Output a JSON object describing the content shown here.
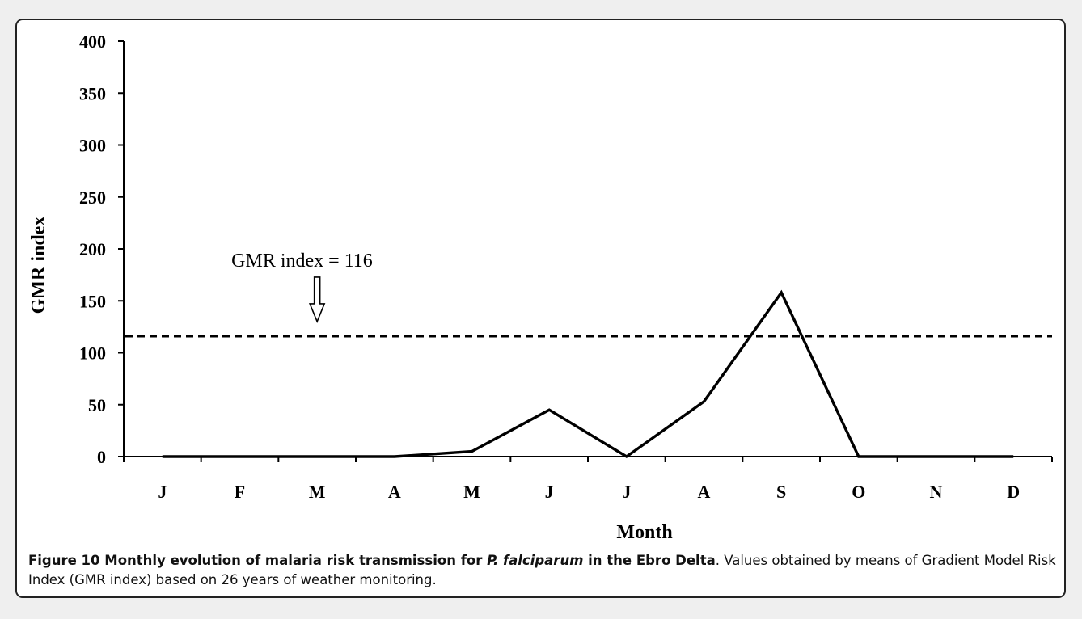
{
  "chart_data": {
    "type": "line",
    "categories": [
      "J",
      "F",
      "M",
      "A",
      "M",
      "J",
      "J",
      "A",
      "S",
      "O",
      "N",
      "D"
    ],
    "series": [
      {
        "values": [
          0,
          0,
          0,
          0,
          5,
          45,
          0,
          53,
          158,
          0,
          0,
          0
        ]
      }
    ],
    "xlabel": "Month",
    "ylabel": "GMR index",
    "ylim": [
      0,
      400
    ],
    "yticks": [
      0,
      50,
      100,
      150,
      200,
      250,
      300,
      350,
      400
    ],
    "threshold": {
      "value": 116,
      "label": "GMR index = 116",
      "style": "dashed"
    },
    "grid": false,
    "legend": "none"
  },
  "caption": {
    "figure_label": "Figure 10",
    "title_pre": "Monthly evolution of malaria risk transmission for ",
    "title_species": "P. falciparum",
    "title_post": " in the Ebro Delta",
    "text": ". Values obtained by means of Gradient Model Risk Index (GMR index) based on 26 years of weather monitoring."
  }
}
